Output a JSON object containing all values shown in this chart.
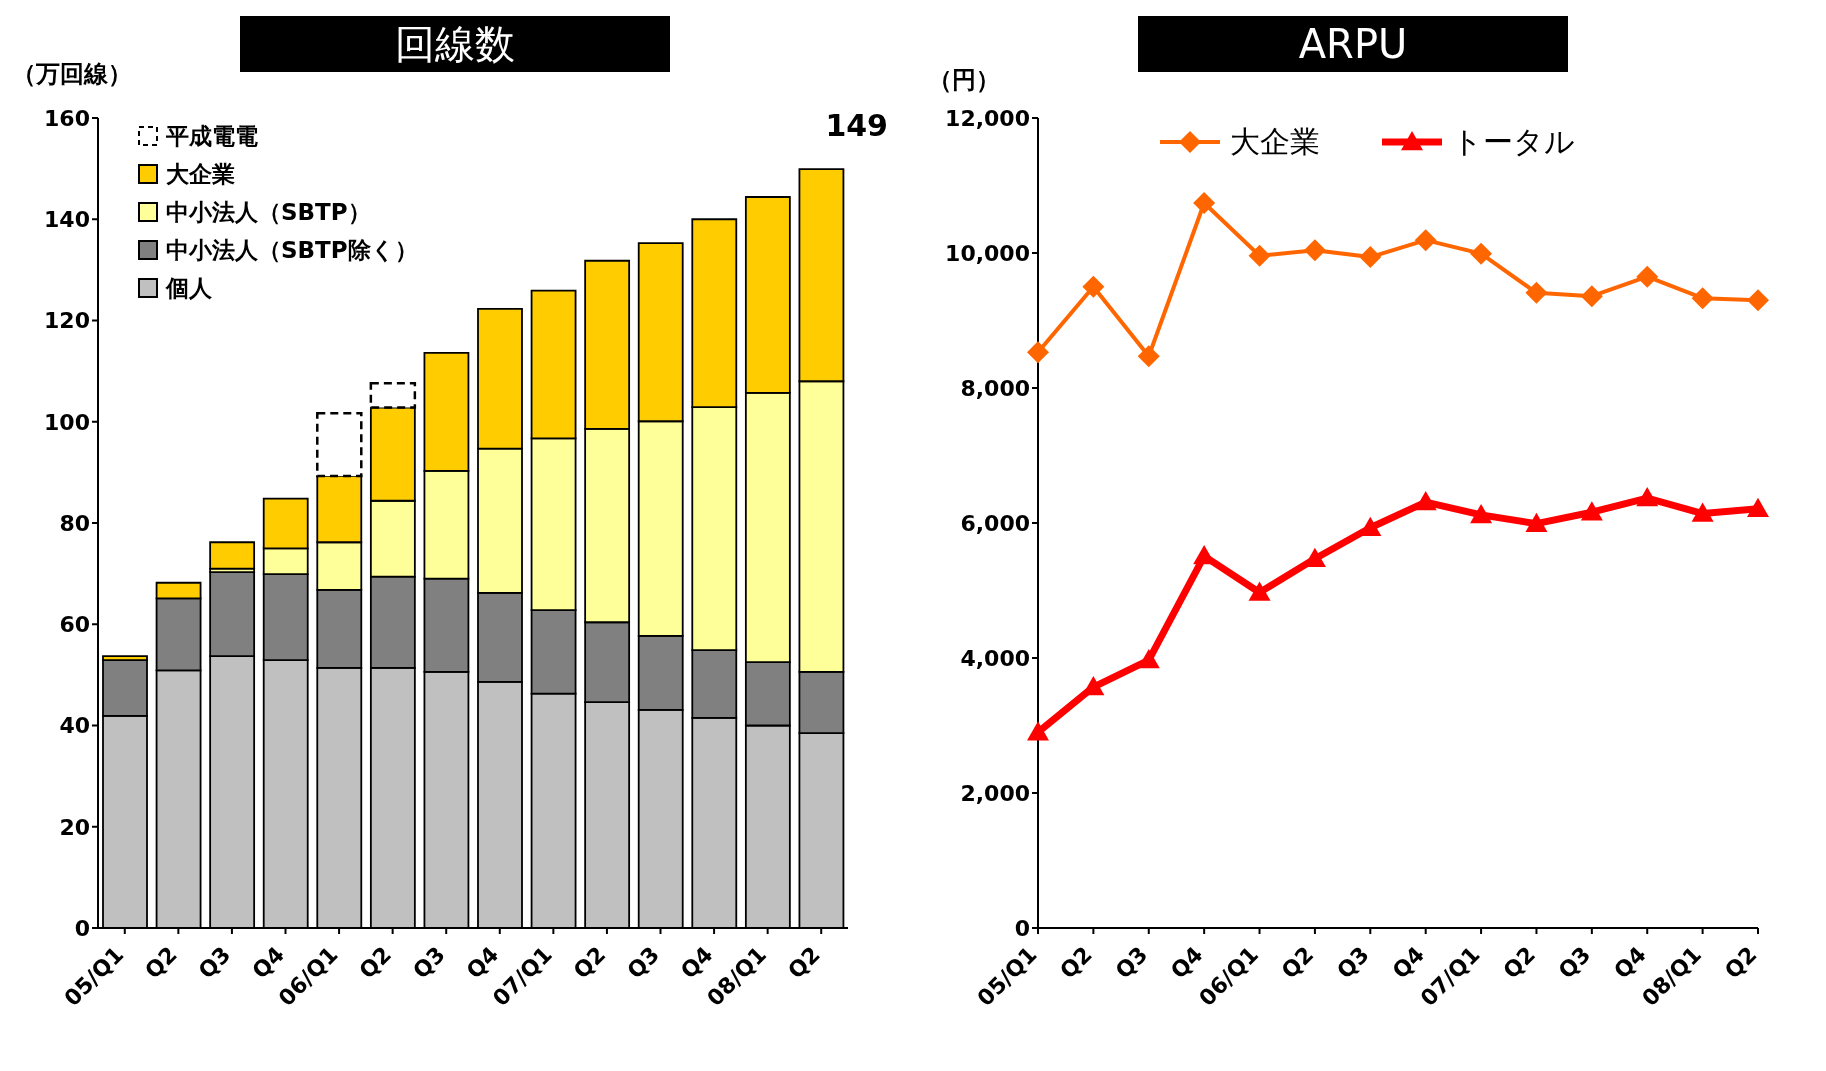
{
  "chart_data": [
    {
      "type": "bar",
      "title": "回線数",
      "ylabel": "（万回線）",
      "stacked": true,
      "legend": "top left",
      "categories": [
        "05/Q1",
        "Q2",
        "Q3",
        "Q4",
        "06/Q1",
        "Q2",
        "Q3",
        "Q4",
        "07/Q1",
        "Q2",
        "Q3",
        "Q4",
        "08/Q1",
        "Q2"
      ],
      "ylim": [
        0,
        160
      ],
      "yticks": [
        0,
        20,
        40,
        60,
        80,
        100,
        120,
        140,
        160
      ],
      "annotations": [
        "149"
      ],
      "series": [
        {
          "name": "個人",
          "color": "#c0c0c0",
          "values": [
            41.9,
            50.9,
            53.7,
            52.9,
            51.4,
            51.4,
            50.6,
            48.6,
            46.3,
            44.6,
            43.1,
            41.5,
            40.0,
            38.5
          ]
        },
        {
          "name": "中小法人（SBTP除く）",
          "color": "#808080",
          "values": [
            11.0,
            14.2,
            16.6,
            17.0,
            15.4,
            18.0,
            18.4,
            17.6,
            16.5,
            15.8,
            14.6,
            13.4,
            12.5,
            12.1
          ]
        },
        {
          "name": "中小法人（SBTP）",
          "color": "#ffff99",
          "values": [
            0,
            0,
            0.7,
            5.1,
            9.4,
            15.0,
            21.3,
            28.5,
            33.9,
            38.2,
            42.4,
            48.0,
            53.2,
            57.4
          ]
        },
        {
          "name": "大企業",
          "color": "#ffcc00",
          "values": [
            0.8,
            3.1,
            5.2,
            9.8,
            13.1,
            18.4,
            23.3,
            27.6,
            29.2,
            33.2,
            35.2,
            37.1,
            38.7,
            41.9
          ]
        },
        {
          "name": "平成電電",
          "color": "#ffffff",
          "line_style": "dashed",
          "values": [
            null,
            null,
            null,
            null,
            12.4,
            4.8,
            null,
            null,
            null,
            null,
            null,
            null,
            null,
            null
          ]
        }
      ]
    },
    {
      "type": "line",
      "title": "ARPU",
      "ylabel": "（円）",
      "legend": "top",
      "categories": [
        "05/Q1",
        "Q2",
        "Q3",
        "Q4",
        "06/Q1",
        "Q2",
        "Q3",
        "Q4",
        "07/Q1",
        "Q2",
        "Q3",
        "Q4",
        "08/Q1",
        "Q2"
      ],
      "ylim": [
        0,
        12000
      ],
      "yticks": [
        {
          "value": 0,
          "label": "0"
        },
        {
          "value": 2000,
          "label": "2,000"
        },
        {
          "value": 4000,
          "label": "4,000"
        },
        {
          "value": 6000,
          "label": "6,000"
        },
        {
          "value": 8000,
          "label": "8,000"
        },
        {
          "value": 10000,
          "label": "10,000"
        },
        {
          "value": 12000,
          "label": "12,000"
        }
      ],
      "series": [
        {
          "name": "大企業",
          "color": "#ff6600",
          "marker": "diamond",
          "values": [
            8530,
            9500,
            8470,
            10740,
            9960,
            10040,
            9940,
            10190,
            9990,
            9410,
            9360,
            9650,
            9330,
            9300
          ]
        },
        {
          "name": "トータル",
          "color": "#ff0000",
          "marker": "triangle",
          "values": [
            2900,
            3570,
            3970,
            5510,
            4970,
            5470,
            5930,
            6310,
            6120,
            5990,
            6160,
            6370,
            6140,
            6210
          ]
        }
      ]
    }
  ]
}
